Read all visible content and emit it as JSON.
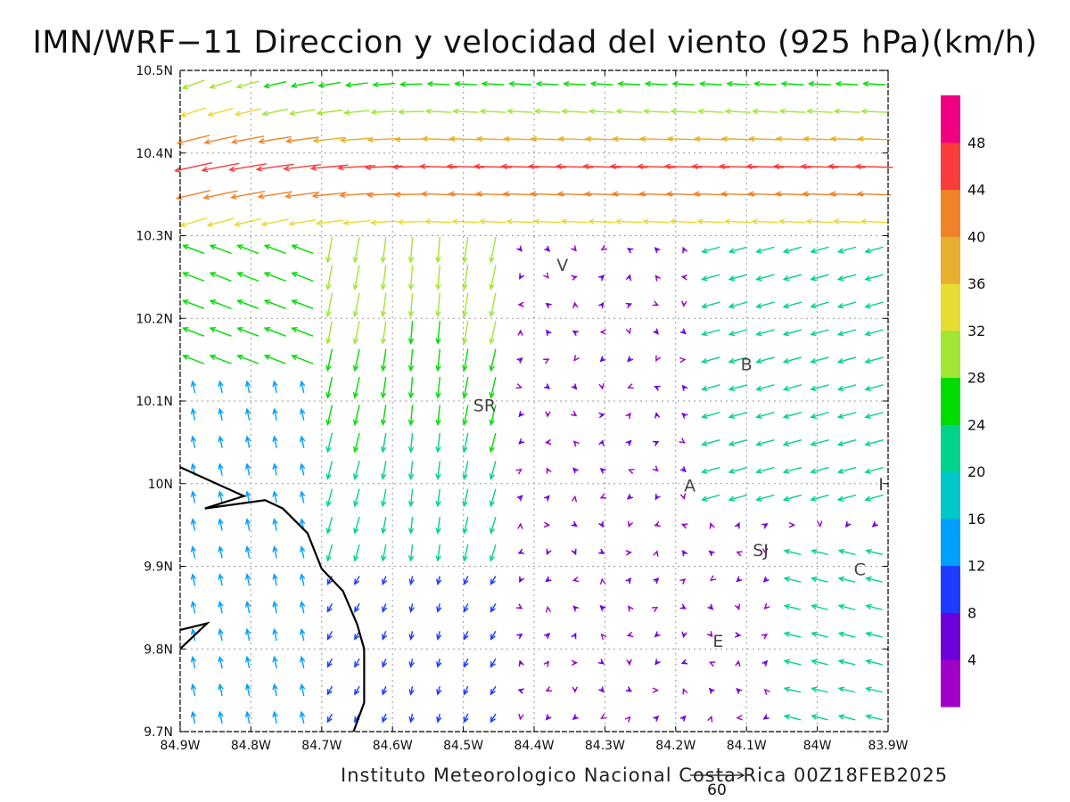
{
  "title": "IMN/WRF−11 Direccion y velocidad del viento (925 hPa)(km/h)",
  "footer": "Instituto Meteorologico Nacional Costa Rica 00Z18FEB2025",
  "reference_vector_label": "60",
  "chart_data": {
    "type": "map",
    "variable": "wind direction and speed at 925 hPa",
    "units": "km/h",
    "valid_time": "00Z18FEB2025",
    "x_ticks": [
      "84.9W",
      "84.8W",
      "84.7W",
      "84.6W",
      "84.5W",
      "84.4W",
      "84.3W",
      "84.2W",
      "84.1W",
      "84W",
      "83.9W"
    ],
    "y_ticks": [
      "10.5N",
      "10.4N",
      "10.3N",
      "10.2N",
      "10.1N",
      "10N",
      "9.9N",
      "9.8N",
      "9.7N"
    ],
    "lon_range": [
      -84.9,
      -83.9
    ],
    "lat_range": [
      9.7,
      10.5
    ],
    "grid": "dotted",
    "colorbar": {
      "labels": [
        "4",
        "8",
        "12",
        "16",
        "20",
        "24",
        "28",
        "32",
        "36",
        "40",
        "44",
        "48"
      ],
      "colors": [
        "#a000c8",
        "#6e00dc",
        "#1e3cff",
        "#00a0ff",
        "#00c8c8",
        "#00d28c",
        "#00dc00",
        "#a0e632",
        "#e6dc32",
        "#e6af2d",
        "#f08228",
        "#fa3c3c",
        "#f00082"
      ]
    },
    "place_labels": [
      {
        "text": "V",
        "lon": -84.36,
        "lat": 10.265
      },
      {
        "text": "B",
        "lon": -84.1,
        "lat": 10.145
      },
      {
        "text": "SR",
        "lon": -84.47,
        "lat": 10.095
      },
      {
        "text": "A",
        "lon": -84.18,
        "lat": 9.998
      },
      {
        "text": "I",
        "lon": -83.91,
        "lat": 10.0
      },
      {
        "text": "SJ",
        "lon": -84.08,
        "lat": 9.92
      },
      {
        "text": "C",
        "lon": -83.94,
        "lat": 9.897
      },
      {
        "text": "E",
        "lon": -84.14,
        "lat": 9.81
      }
    ],
    "coastline_lonlat": [
      [
        -84.9,
        10.02
      ],
      [
        -84.81,
        9.985
      ],
      [
        -84.865,
        9.97
      ],
      [
        -84.78,
        9.98
      ],
      [
        -84.755,
        9.97
      ],
      [
        -84.72,
        9.94
      ],
      [
        -84.7,
        9.897
      ],
      [
        -84.67,
        9.87
      ],
      [
        -84.65,
        9.83
      ],
      [
        -84.64,
        9.8
      ],
      [
        -84.64,
        9.735
      ],
      [
        -84.655,
        9.7
      ]
    ],
    "coastline2_lonlat": [
      [
        -84.9,
        9.823
      ],
      [
        -84.862,
        9.831
      ],
      [
        -84.9,
        9.8
      ]
    ]
  }
}
